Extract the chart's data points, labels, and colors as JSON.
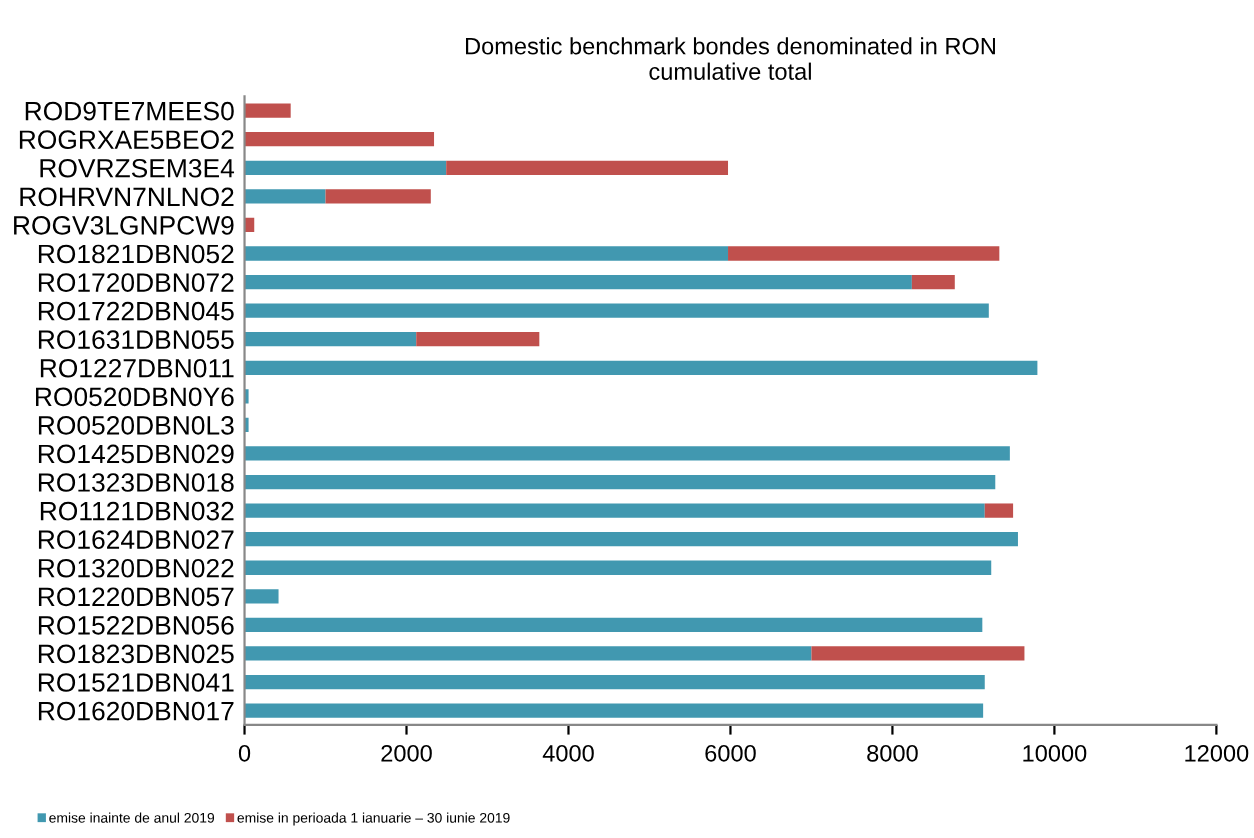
{
  "chart_data": {
    "type": "bar",
    "orientation": "horizontal",
    "stacked": true,
    "title": "Domestic benchmark bondes denominated in RON\ncumulative total",
    "categories": [
      "ROD9TE7MEES0",
      "ROGRXAE5BEO2",
      "ROVRZSEM3E4",
      "ROHRVN7NLNO2",
      "ROGV3LGNPCW9",
      "RO1821DBN052",
      "RO1720DBN072",
      "RO1722DBN045",
      "RO1631DBN055",
      "RO1227DBN011",
      "RO0520DBN0Y6",
      "RO0520DBN0L3",
      "RO1425DBN029",
      "RO1323DBN018",
      "RO1121DBN032",
      "RO1624DBN027",
      "RO1320DBN022",
      "RO1220DBN057",
      "RO1522DBN056",
      "RO1823DBN025",
      "RO1521DBN041",
      "RO1620DBN017"
    ],
    "series": [
      {
        "name": "emise inainte de anul 2019",
        "color": "#4198b0",
        "values": [
          0,
          0,
          2490,
          1000,
          0,
          5970,
          8240,
          9190,
          2120,
          9790,
          50,
          50,
          9450,
          9270,
          9140,
          9550,
          9220,
          420,
          9110,
          7000,
          9140,
          9120
        ]
      },
      {
        "name": "emise in perioada 1 ianuarie – 30 iunie 2019",
        "color": "#c0504d",
        "values": [
          570,
          2340,
          3480,
          1300,
          120,
          3350,
          530,
          0,
          1520,
          0,
          0,
          0,
          0,
          0,
          350,
          0,
          0,
          0,
          0,
          2630,
          0,
          0
        ]
      }
    ],
    "xlim": [
      0,
      12000
    ],
    "xticks": [
      0,
      2000,
      4000,
      6000,
      8000,
      10000,
      12000
    ],
    "grid": false,
    "legend": "bottom left"
  }
}
